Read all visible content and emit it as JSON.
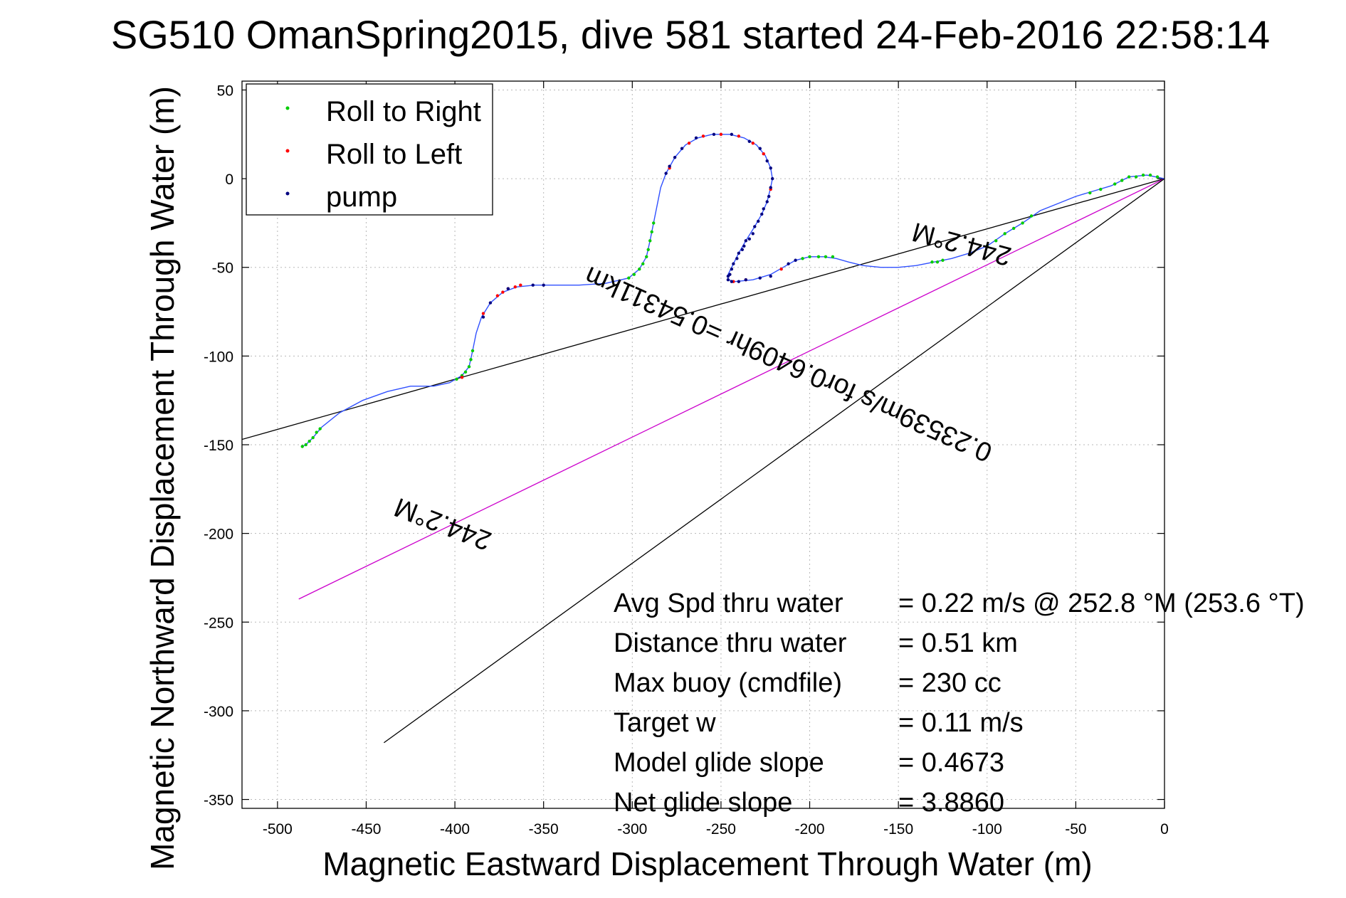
{
  "chart_data": {
    "type": "scatter",
    "title": "SG510 OmanSpring2015, dive 581 started 24-Feb-2016 22:58:14",
    "xlabel": "Magnetic Eastward Displacement Through Water (m)",
    "ylabel": "Magnetic Northward Displacement Through Water (m)",
    "xlim": [
      -520,
      0
    ],
    "ylim": [
      -355,
      55
    ],
    "x_ticks": [
      -500,
      -450,
      -400,
      -350,
      -300,
      -250,
      -200,
      -150,
      -100,
      -50,
      0
    ],
    "y_ticks": [
      50,
      0,
      -50,
      -100,
      -150,
      -200,
      -250,
      -300,
      -350
    ],
    "grid": true,
    "legend_position": "top-left",
    "legend": [
      {
        "label": "Roll to Right",
        "color": "#00cc00"
      },
      {
        "label": "Roll to Left",
        "color": "#ff0000"
      },
      {
        "label": "pump",
        "color": "#000080"
      }
    ],
    "track": {
      "name": "track",
      "color": "#3050ff",
      "points": [
        [
          0,
          0
        ],
        [
          -5,
          1
        ],
        [
          -10,
          2
        ],
        [
          -20,
          1
        ],
        [
          -30,
          -4
        ],
        [
          -40,
          -7
        ],
        [
          -50,
          -10
        ],
        [
          -60,
          -14
        ],
        [
          -70,
          -18
        ],
        [
          -80,
          -25
        ],
        [
          -90,
          -31
        ],
        [
          -100,
          -38
        ],
        [
          -110,
          -42
        ],
        [
          -120,
          -45
        ],
        [
          -130,
          -47
        ],
        [
          -140,
          -49
        ],
        [
          -150,
          -50
        ],
        [
          -160,
          -50
        ],
        [
          -170,
          -49
        ],
        [
          -178,
          -47
        ],
        [
          -185,
          -45
        ],
        [
          -192,
          -44
        ],
        [
          -200,
          -44
        ],
        [
          -208,
          -46
        ],
        [
          -215,
          -50
        ],
        [
          -222,
          -54
        ],
        [
          -232,
          -57
        ],
        [
          -242,
          -58
        ],
        [
          -246,
          -57
        ],
        [
          -246,
          -54
        ],
        [
          -243,
          -48
        ],
        [
          -240,
          -42
        ],
        [
          -236,
          -35
        ],
        [
          -231,
          -27
        ],
        [
          -227,
          -20
        ],
        [
          -224,
          -13
        ],
        [
          -222,
          -5
        ],
        [
          -221,
          0
        ],
        [
          -222,
          6
        ],
        [
          -225,
          13
        ],
        [
          -230,
          19
        ],
        [
          -237,
          23
        ],
        [
          -245,
          25
        ],
        [
          -255,
          25
        ],
        [
          -263,
          23
        ],
        [
          -270,
          19
        ],
        [
          -276,
          12
        ],
        [
          -281,
          3
        ],
        [
          -284,
          -5
        ],
        [
          -286,
          -15
        ],
        [
          -288,
          -25
        ],
        [
          -290,
          -35
        ],
        [
          -292,
          -44
        ],
        [
          -296,
          -51
        ],
        [
          -302,
          -56
        ],
        [
          -315,
          -59
        ],
        [
          -330,
          -60
        ],
        [
          -345,
          -60
        ],
        [
          -355,
          -60
        ],
        [
          -365,
          -61
        ],
        [
          -373,
          -64
        ],
        [
          -380,
          -70
        ],
        [
          -385,
          -78
        ],
        [
          -388,
          -87
        ],
        [
          -390,
          -97
        ],
        [
          -392,
          -106
        ],
        [
          -396,
          -111
        ],
        [
          -403,
          -115
        ],
        [
          -412,
          -117
        ],
        [
          -425,
          -117
        ],
        [
          -438,
          -120
        ],
        [
          -452,
          -125
        ],
        [
          -465,
          -132
        ],
        [
          -475,
          -140
        ],
        [
          -480,
          -146
        ],
        [
          -484,
          -150
        ],
        [
          -486,
          -151
        ]
      ]
    },
    "roll_right_points": [
      [
        -4,
        1
      ],
      [
        -8,
        2
      ],
      [
        -12,
        2
      ],
      [
        -16,
        1
      ],
      [
        -20,
        1
      ],
      [
        -24,
        -1
      ],
      [
        -28,
        -3
      ],
      [
        -36,
        -6
      ],
      [
        -42,
        -8
      ],
      [
        -75,
        -21
      ],
      [
        -80,
        -25
      ],
      [
        -85,
        -28
      ],
      [
        -90,
        -31
      ],
      [
        -95,
        -35
      ],
      [
        -100,
        -38
      ],
      [
        -125,
        -46
      ],
      [
        -128,
        -47
      ],
      [
        -131,
        -47
      ],
      [
        -187,
        -44
      ],
      [
        -191,
        -44
      ],
      [
        -195,
        -44
      ],
      [
        -200,
        -44
      ],
      [
        -204,
        -45
      ],
      [
        -288,
        -25
      ],
      [
        -289,
        -30
      ],
      [
        -290,
        -35
      ],
      [
        -291,
        -40
      ],
      [
        -292,
        -44
      ],
      [
        -294,
        -48
      ],
      [
        -296,
        -51
      ],
      [
        -299,
        -54
      ],
      [
        -302,
        -56
      ],
      [
        -390,
        -97
      ],
      [
        -391,
        -102
      ],
      [
        -392,
        -106
      ],
      [
        -394,
        -109
      ],
      [
        -396,
        -111
      ],
      [
        -399,
        -113
      ],
      [
        -476,
        -141
      ],
      [
        -478,
        -143
      ],
      [
        -480,
        -146
      ],
      [
        -482,
        -148
      ],
      [
        -484,
        -150
      ],
      [
        -486,
        -151
      ]
    ],
    "roll_left_points": [
      [
        -222,
        -6
      ],
      [
        -226,
        14
      ],
      [
        -232,
        20
      ],
      [
        -240,
        24
      ],
      [
        -250,
        25
      ],
      [
        -260,
        24
      ],
      [
        -268,
        20
      ],
      [
        -279,
        6
      ],
      [
        -216,
        -51
      ],
      [
        -236,
        -57
      ],
      [
        -243,
        -58
      ],
      [
        -363,
        -60
      ],
      [
        -366,
        -61
      ],
      [
        -370,
        -62
      ],
      [
        -373,
        -64
      ],
      [
        -376,
        -66
      ],
      [
        -396,
        -112
      ],
      [
        -384,
        -76
      ]
    ],
    "pump_points": [
      [
        -221,
        0
      ],
      [
        -222,
        6
      ],
      [
        -224,
        10
      ],
      [
        -228,
        17
      ],
      [
        -234,
        21
      ],
      [
        -244,
        25
      ],
      [
        -254,
        25
      ],
      [
        -264,
        23
      ],
      [
        -272,
        17
      ],
      [
        -276,
        12
      ],
      [
        -279,
        7
      ],
      [
        -281,
        3
      ],
      [
        -222,
        -5
      ],
      [
        -223,
        -10
      ],
      [
        -224,
        -13
      ],
      [
        -226,
        -17
      ],
      [
        -227,
        -20
      ],
      [
        -229,
        -24
      ],
      [
        -231,
        -27
      ],
      [
        -232,
        -31
      ],
      [
        -234,
        -34
      ],
      [
        -236,
        -35
      ],
      [
        -237,
        -38
      ],
      [
        -238,
        -40
      ],
      [
        -240,
        -42
      ],
      [
        -241,
        -45
      ],
      [
        -243,
        -48
      ],
      [
        -244,
        -51
      ],
      [
        -245,
        -54
      ],
      [
        -246,
        -55
      ],
      [
        -246,
        -57
      ],
      [
        -244,
        -58
      ],
      [
        -240,
        -58
      ],
      [
        -236,
        -57
      ],
      [
        -228,
        -56
      ],
      [
        -222,
        -55
      ],
      [
        -208,
        -46
      ],
      [
        -212,
        -48
      ],
      [
        -384,
        -78
      ],
      [
        -380,
        -70
      ],
      [
        -370,
        -62
      ],
      [
        -356,
        -60
      ],
      [
        -350,
        -60
      ]
    ],
    "reference_lines": [
      {
        "name": "heading-line-upper",
        "from": [
          0,
          0
        ],
        "to": [
          -520,
          -147
        ],
        "color": "#000000"
      },
      {
        "name": "heading-line-mean",
        "from": [
          0,
          0
        ],
        "to": [
          -488,
          -237
        ],
        "color": "#cc00cc"
      },
      {
        "name": "heading-line-lower",
        "from": [
          0,
          0
        ],
        "to": [
          -440,
          -318
        ],
        "color": "#000000"
      }
    ],
    "annotations": [
      {
        "text": "244.2°M",
        "x": -113,
        "y": -32,
        "rotate": 195
      },
      {
        "text": "0.23539m/s for0.6409hr =0.54311km",
        "x": -210,
        "y": -100,
        "rotate": 204
      },
      {
        "text": "244.2°M",
        "x": -405,
        "y": -190,
        "rotate": 201
      }
    ],
    "stats": [
      {
        "label": "Avg Spd thru water",
        "value": "=  0.22 m/s @ 252.8 °M (253.6 °T)"
      },
      {
        "label": "Distance thru water",
        "value": "=  0.51 km"
      },
      {
        "label": "Max buoy (cmdfile)",
        "value": "= 230 cc"
      },
      {
        "label": "Target w",
        "value": "= 0.11 m/s"
      },
      {
        "label": "Model glide slope",
        "value": "= 0.4673"
      },
      {
        "label": "Net glide slope",
        "value": "= 3.8860"
      }
    ]
  }
}
